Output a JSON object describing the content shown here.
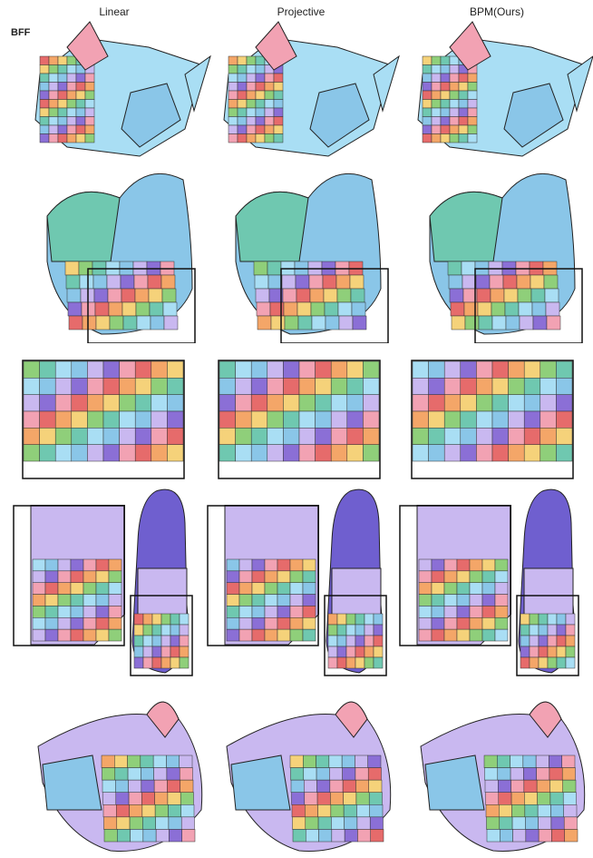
{
  "columns": [
    "Linear",
    "Projective",
    "BPM(Ours)"
  ],
  "row_label": "BFF",
  "colors": {
    "blue": "#8ac6e8",
    "cyan": "#a9def4",
    "teal": "#6fc8b0",
    "green": "#8fcf7a",
    "yellow": "#f5d27a",
    "orange": "#f4a668",
    "red": "#e66b6b",
    "pink": "#f2a2b3",
    "lavender": "#c9b8f0",
    "purple": "#8b6fd6",
    "violet": "#6f5fcf",
    "outline": "#111111"
  }
}
